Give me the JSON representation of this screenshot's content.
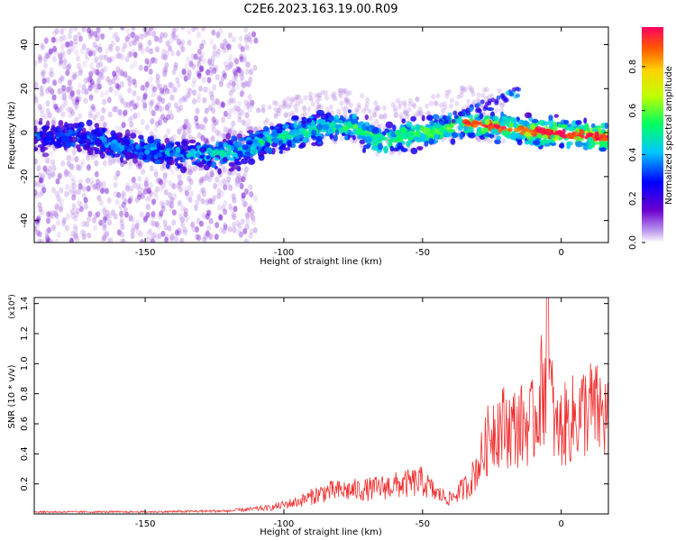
{
  "title": "C2E6.2023.163.19.00.R09",
  "chart_data": [
    {
      "type": "heatmap",
      "xlabel": "Height of straight line (km)",
      "ylabel": "Frequency (Hz)",
      "xlim": [
        -190,
        17
      ],
      "ylim": [
        -50,
        48
      ],
      "xticks": [
        -150,
        -100,
        -50,
        0
      ],
      "yticks": [
        -40,
        -20,
        0,
        20,
        40
      ],
      "colorbar": {
        "label": "Normalized spectral amplitude",
        "range": [
          0,
          0.98
        ],
        "ticks": [
          "0.0",
          "0.2",
          "0.4",
          "0.6",
          "0.8"
        ],
        "colormap": [
          "#a06bd9",
          "#5a00c8",
          "#0000ff",
          "#00c8ff",
          "#00ff60",
          "#bfff00",
          "#ffd200",
          "#ff5a00",
          "#ff0050"
        ]
      },
      "ridge": [
        {
          "x": -185,
          "y": -2
        },
        {
          "x": -170,
          "y": -3
        },
        {
          "x": -160,
          "y": -6
        },
        {
          "x": -145,
          "y": -9
        },
        {
          "x": -130,
          "y": -10
        },
        {
          "x": -115,
          "y": -8
        },
        {
          "x": -105,
          "y": -3
        },
        {
          "x": -95,
          "y": 0
        },
        {
          "x": -85,
          "y": 2
        },
        {
          "x": -75,
          "y": 3
        },
        {
          "x": -65,
          "y": -4
        },
        {
          "x": -55,
          "y": -1
        },
        {
          "x": -45,
          "y": 1
        },
        {
          "x": -35,
          "y": 4
        },
        {
          "x": -25,
          "y": 3
        },
        {
          "x": -15,
          "y": 1
        },
        {
          "x": -5,
          "y": 0
        },
        {
          "x": 5,
          "y": -1
        },
        {
          "x": 15,
          "y": -2
        }
      ],
      "grid": false
    },
    {
      "type": "line",
      "xlabel": "Height of straight line (km)",
      "ylabel": "SNR (10 * v/v)",
      "ymultiplier": "(x10⁴)",
      "xlim": [
        -190,
        17
      ],
      "ylim": [
        0,
        1.44
      ],
      "xticks": [
        -150,
        -100,
        -50,
        0
      ],
      "yticks": [
        "0.2",
        "0.4",
        "0.6",
        "0.8",
        "1.0",
        "1.2",
        "1.4"
      ],
      "series": [
        {
          "color": "#f03030",
          "envelope": [
            {
              "x": -190,
              "y": 0.02
            },
            {
              "x": -150,
              "y": 0.02
            },
            {
              "x": -120,
              "y": 0.03
            },
            {
              "x": -105,
              "y": 0.06
            },
            {
              "x": -95,
              "y": 0.12
            },
            {
              "x": -85,
              "y": 0.22
            },
            {
              "x": -70,
              "y": 0.24
            },
            {
              "x": -60,
              "y": 0.28
            },
            {
              "x": -50,
              "y": 0.32
            },
            {
              "x": -45,
              "y": 0.2
            },
            {
              "x": -40,
              "y": 0.15
            },
            {
              "x": -33,
              "y": 0.3
            },
            {
              "x": -28,
              "y": 0.6
            },
            {
              "x": -25,
              "y": 0.85
            },
            {
              "x": -22,
              "y": 0.88
            },
            {
              "x": -18,
              "y": 0.85
            },
            {
              "x": -10,
              "y": 0.9
            },
            {
              "x": -5,
              "y": 1.44
            },
            {
              "x": -2,
              "y": 0.8
            },
            {
              "x": 0,
              "y": 0.85
            },
            {
              "x": 5,
              "y": 0.95
            },
            {
              "x": 10,
              "y": 1.05
            },
            {
              "x": 17,
              "y": 0.95
            }
          ]
        }
      ],
      "grid": false
    }
  ]
}
